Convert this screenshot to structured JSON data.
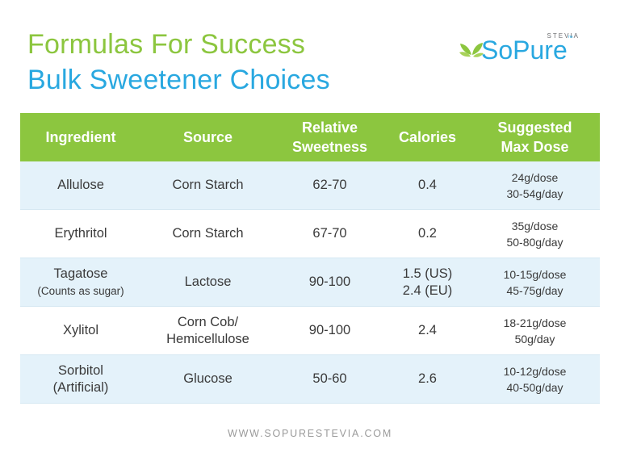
{
  "header": {
    "title_line1": "Formulas For Success",
    "title_line2": "Bulk Sweetener Choices"
  },
  "logo": {
    "brand": "SoPure",
    "tagline": "STEVIA",
    "trademark": "™"
  },
  "colors": {
    "green": "#8cc63f",
    "blue": "#29a8e0",
    "row_alt": "#e4f2fa"
  },
  "table": {
    "headers": {
      "ingredient": "Ingredient",
      "source": "Source",
      "sweetness_1": "Relative",
      "sweetness_2": "Sweetness",
      "calories": "Calories",
      "dose_1": "Suggested",
      "dose_2": "Max Dose"
    },
    "rows": [
      {
        "ingredient": "Allulose",
        "ingredient_note": "",
        "source_1": "Corn Starch",
        "source_2": "",
        "sweetness": "62-70",
        "calories_1": "0.4",
        "calories_2": "",
        "dose_1": "24g/dose",
        "dose_2": "30-54g/day"
      },
      {
        "ingredient": "Erythritol",
        "ingredient_note": "",
        "source_1": "Corn Starch",
        "source_2": "",
        "sweetness": "67-70",
        "calories_1": "0.2",
        "calories_2": "",
        "dose_1": "35g/dose",
        "dose_2": "50-80g/day"
      },
      {
        "ingredient": "Tagatose",
        "ingredient_note": "(Counts as sugar)",
        "source_1": "Lactose",
        "source_2": "",
        "sweetness": "90-100",
        "calories_1": "1.5 (US)",
        "calories_2": "2.4 (EU)",
        "dose_1": "10-15g/dose",
        "dose_2": "45-75g/day"
      },
      {
        "ingredient": "Xylitol",
        "ingredient_note": "",
        "source_1": "Corn Cob/",
        "source_2": "Hemicellulose",
        "sweetness": "90-100",
        "calories_1": "2.4",
        "calories_2": "",
        "dose_1": "18-21g/dose",
        "dose_2": "50g/day"
      },
      {
        "ingredient": "Sorbitol",
        "ingredient_note": "(Artificial)",
        "source_1": "Glucose",
        "source_2": "",
        "sweetness": "50-60",
        "calories_1": "2.6",
        "calories_2": "",
        "dose_1": "10-12g/dose",
        "dose_2": "40-50g/day"
      }
    ]
  },
  "footer": {
    "url": "WWW.SOPURESTEVIA.COM"
  }
}
